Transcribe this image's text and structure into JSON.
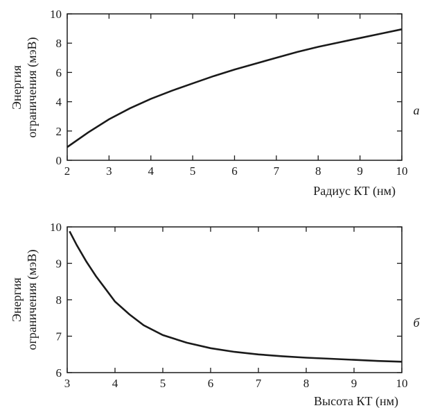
{
  "chart_data": [
    {
      "type": "line",
      "panel_label": "a",
      "xlabel": "Радиус КТ (нм)",
      "ylabel": [
        "Энергия",
        "ограничения (мэВ)"
      ],
      "xlim": [
        2,
        10
      ],
      "ylim": [
        0,
        10
      ],
      "xticks": [
        "2",
        "3",
        "4",
        "5",
        "6",
        "7",
        "8",
        "9",
        "10"
      ],
      "yticks": [
        "0",
        "2",
        "4",
        "6",
        "8",
        "10"
      ],
      "grid": false,
      "series": [
        {
          "x": [
            2,
            2.5,
            3,
            3.5,
            4,
            4.5,
            5,
            5.5,
            6,
            6.5,
            7,
            7.5,
            8,
            8.5,
            9,
            9.5,
            10
          ],
          "y": [
            0.9,
            1.9,
            2.8,
            3.55,
            4.2,
            4.75,
            5.25,
            5.75,
            6.2,
            6.6,
            7.0,
            7.4,
            7.75,
            8.05,
            8.35,
            8.65,
            8.95
          ]
        }
      ]
    },
    {
      "type": "line",
      "panel_label": "б",
      "xlabel": "Высота КТ (нм)",
      "ylabel": [
        "Энергия",
        "ограничения (мэВ)"
      ],
      "xlim": [
        3,
        10
      ],
      "ylim": [
        6,
        10
      ],
      "xticks": [
        "3",
        "4",
        "5",
        "6",
        "7",
        "8",
        "9",
        "10"
      ],
      "yticks": [
        "6",
        "7",
        "8",
        "9",
        "10"
      ],
      "grid": false,
      "series": [
        {
          "x": [
            3.05,
            3.2,
            3.4,
            3.6,
            3.8,
            4.0,
            4.3,
            4.6,
            5.0,
            5.5,
            6.0,
            6.5,
            7.0,
            7.5,
            8.0,
            8.5,
            9.0,
            9.5,
            10.0
          ],
          "y": [
            9.88,
            9.5,
            9.05,
            8.65,
            8.3,
            7.95,
            7.6,
            7.3,
            7.03,
            6.82,
            6.67,
            6.57,
            6.5,
            6.45,
            6.41,
            6.38,
            6.35,
            6.32,
            6.3
          ]
        }
      ]
    }
  ]
}
